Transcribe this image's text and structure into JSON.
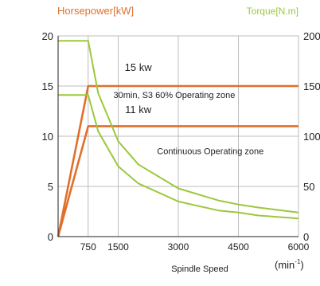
{
  "chart_data": {
    "type": "line",
    "title": "",
    "y_left_label": "Horsepower[kW]",
    "y_right_label": "Torque[N.m]",
    "xlabel": "Spindle Speed",
    "x_unit_base": "(min",
    "x_unit_sup": "-1",
    "x_unit_close": ")",
    "xlim": [
      0,
      6000
    ],
    "y_left_lim": [
      0,
      20
    ],
    "y_right_lim": [
      0,
      200
    ],
    "x_ticks": [
      {
        "value": 750,
        "label": "750"
      },
      {
        "value": 1500,
        "label": "1500"
      },
      {
        "value": 3000,
        "label": "3000"
      },
      {
        "value": 4500,
        "label": "4500"
      },
      {
        "value": 6000,
        "label": "6000"
      }
    ],
    "y_left_ticks": [
      {
        "value": 0,
        "label": "0"
      },
      {
        "value": 5,
        "label": "5"
      },
      {
        "value": 10,
        "label": "10"
      },
      {
        "value": 15,
        "label": "15"
      },
      {
        "value": 20,
        "label": "20"
      }
    ],
    "y_right_ticks": [
      {
        "value": 0,
        "label": "0"
      },
      {
        "value": 50,
        "label": "50"
      },
      {
        "value": 100,
        "label": "100"
      },
      {
        "value": 150,
        "label": "150"
      },
      {
        "value": 200,
        "label": "200"
      }
    ],
    "grid": true,
    "colors": {
      "power": "#e0702a",
      "torque": "#9cc83c",
      "grid": "#bdbdbd",
      "axis_label": "#e0702a",
      "torque_label": "#9cc83c"
    },
    "series": [
      {
        "name": "15 kw",
        "axis": "left",
        "kind": "power",
        "x": [
          0,
          750,
          6000
        ],
        "y": [
          0,
          15,
          15
        ]
      },
      {
        "name": "11 kw",
        "axis": "left",
        "kind": "power",
        "x": [
          0,
          750,
          6000
        ],
        "y": [
          0,
          11,
          11
        ]
      },
      {
        "axis": "right",
        "kind": "torque",
        "x": [
          0,
          750,
          1000,
          1500,
          2000,
          3000,
          4000,
          4500,
          5000,
          6000
        ],
        "y": [
          195,
          195,
          143,
          95,
          72,
          48,
          36,
          32,
          29,
          24
        ]
      },
      {
        "axis": "right",
        "kind": "torque",
        "x": [
          0,
          750,
          1000,
          1500,
          2000,
          3000,
          4000,
          4500,
          5000,
          6000
        ],
        "y": [
          141,
          141,
          105,
          70,
          53,
          35,
          26,
          24,
          21,
          18
        ]
      }
    ],
    "annotations": [
      {
        "text": "15 kw",
        "x": 2000,
        "y": 16.5,
        "axis": "left",
        "size": 13
      },
      {
        "text": "30min, S3 60% Operating zone",
        "x": 2900,
        "y": 13.8,
        "axis": "left",
        "size": 11
      },
      {
        "text": "11 kw",
        "x": 2000,
        "y": 12.3,
        "axis": "left",
        "size": 13
      },
      {
        "text": "Continuous Operating zone",
        "x": 3800,
        "y": 8.2,
        "axis": "left",
        "size": 11
      }
    ]
  }
}
